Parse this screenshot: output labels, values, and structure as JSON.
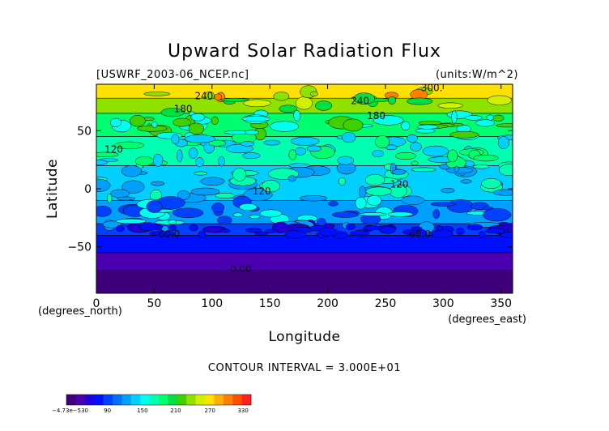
{
  "chart_data": {
    "type": "heatmap",
    "title": "Upward Solar Radiation Flux",
    "subtitle_left": "[USWRF_2003-06_NCEP.nc]",
    "subtitle_right": "(units:W/m^2)",
    "xlabel": "Longitude",
    "ylabel": "Latitude",
    "x_unit_label": "(degrees_east)",
    "y_unit_label": "(degrees_north)",
    "xlim": [
      0,
      360
    ],
    "ylim": [
      -90,
      90
    ],
    "x_ticks": [
      0,
      50,
      100,
      150,
      200,
      250,
      300,
      350
    ],
    "y_ticks": [
      -50,
      0,
      50
    ],
    "x_tick_labels": [
      "0",
      "50",
      "100",
      "150",
      "200",
      "250",
      "300",
      "350"
    ],
    "y_tick_labels": [
      "−50",
      "0",
      "50"
    ],
    "contour_interval_text": "CONTOUR INTERVAL = 3.000E+01",
    "contour_interval": 30,
    "colorbar": {
      "min": -4.73e-05,
      "max": 330,
      "tick_labels": [
        "−4.73e−530",
        "90",
        "150",
        "210",
        "270",
        "330"
      ],
      "colors": [
        "#3d007a",
        "#4a00b0",
        "#2000d8",
        "#0010ff",
        "#0040ff",
        "#0070ff",
        "#00a0ff",
        "#00d0ff",
        "#00ffee",
        "#00ffb0",
        "#00ff70",
        "#00e040",
        "#40d000",
        "#90e000",
        "#d0f000",
        "#ffe000",
        "#ffb000",
        "#ff8000",
        "#ff5000",
        "#ff2020"
      ]
    },
    "zonal_bands": [
      {
        "lat_min": -90,
        "lat_max": -70,
        "value": 0
      },
      {
        "lat_min": -70,
        "lat_max": -55,
        "value": 30
      },
      {
        "lat_min": -55,
        "lat_max": -40,
        "value": 60
      },
      {
        "lat_min": -40,
        "lat_max": -30,
        "value": 75
      },
      {
        "lat_min": -30,
        "lat_max": -10,
        "value": 105
      },
      {
        "lat_min": -10,
        "lat_max": 20,
        "value": 130
      },
      {
        "lat_min": 20,
        "lat_max": 45,
        "value": 150
      },
      {
        "lat_min": 45,
        "lat_max": 65,
        "value": 175
      },
      {
        "lat_min": 65,
        "lat_max": 78,
        "value": 215
      },
      {
        "lat_min": 78,
        "lat_max": 90,
        "value": 260
      }
    ],
    "contour_labels": [
      {
        "text": "300.",
        "lon": 290,
        "lat": 84
      },
      {
        "text": "240",
        "lon": 93,
        "lat": 77
      },
      {
        "text": "240",
        "lon": 228,
        "lat": 73
      },
      {
        "text": "180",
        "lon": 75,
        "lat": 66
      },
      {
        "text": "180",
        "lon": 242,
        "lat": 60
      },
      {
        "text": "120",
        "lon": 15,
        "lat": 31
      },
      {
        "text": "120",
        "lon": 143,
        "lat": -5
      },
      {
        "text": "120",
        "lon": 262,
        "lat": 1
      },
      {
        "text": "60.0",
        "lon": 63,
        "lat": -42
      },
      {
        "text": "60.0",
        "lon": 280,
        "lat": -42
      },
      {
        "text": "0.00",
        "lon": 125,
        "lat": -72
      }
    ]
  }
}
